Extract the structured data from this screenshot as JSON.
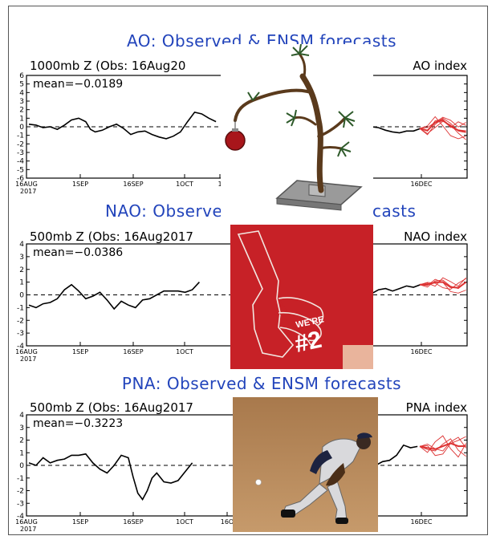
{
  "colors": {
    "title": "#2244bb",
    "observed": "#000000",
    "forecast": "#dd3333",
    "frame": "#000000",
    "finger_bg": "#c72127",
    "dirt": "#b58a5a"
  },
  "chart_data": [
    {
      "type": "line",
      "title": "AO: Observed & ENSM forecasts",
      "subtitle_left": "1000mb Z (Obs: 16Aug20",
      "subtitle_right": "AO index",
      "mean_label": "mean=−0.0189",
      "ylim": [
        -6,
        6
      ],
      "yticks": [
        "6",
        "5",
        "4",
        "3",
        "2",
        "1",
        "0",
        "-1",
        "-2",
        "-3",
        "-4",
        "-5",
        "-6"
      ],
      "xtick_labels": [
        "16AUG",
        "1SEP",
        "16SEP",
        "1OCT",
        "1",
        "",
        "16DEC",
        "16DEC"
      ],
      "year_label": "2017",
      "grid": false,
      "zero_line": "dashed",
      "observed_left": [
        [
          0,
          0.3
        ],
        [
          3,
          0.2
        ],
        [
          6,
          -0.1
        ],
        [
          9,
          0.0
        ],
        [
          12,
          -0.3
        ],
        [
          15,
          0.2
        ],
        [
          18,
          0.8
        ],
        [
          21,
          1.0
        ],
        [
          24,
          0.6
        ],
        [
          26,
          -0.3
        ],
        [
          28,
          -0.6
        ],
        [
          31,
          -0.4
        ],
        [
          34,
          0.0
        ],
        [
          37,
          0.3
        ],
        [
          40,
          -0.2
        ],
        [
          43,
          -0.9
        ],
        [
          46,
          -0.6
        ],
        [
          49,
          -0.5
        ],
        [
          52,
          -0.9
        ],
        [
          55,
          -1.2
        ],
        [
          58,
          -1.4
        ],
        [
          61,
          -1.1
        ],
        [
          64,
          -0.6
        ],
        [
          67,
          0.6
        ],
        [
          70,
          1.7
        ],
        [
          73,
          1.5
        ],
        [
          76,
          1.0
        ],
        [
          79,
          0.6
        ]
      ],
      "observed_right": [
        [
          0,
          0.0
        ],
        [
          3,
          -0.1
        ],
        [
          6,
          -0.4
        ],
        [
          9,
          -0.6
        ],
        [
          12,
          -0.7
        ],
        [
          15,
          -0.5
        ],
        [
          18,
          -0.5
        ],
        [
          21,
          -0.2
        ]
      ],
      "forecast_members": [
        [
          [
            0,
            0
          ],
          [
            3,
            -1.2
          ],
          [
            6,
            0.8
          ],
          [
            9,
            2.0
          ],
          [
            12,
            1.0
          ],
          [
            15,
            -0.5
          ],
          [
            18,
            -0.8
          ]
        ],
        [
          [
            0,
            0
          ],
          [
            3,
            -0.5
          ],
          [
            6,
            1.5
          ],
          [
            9,
            1.8
          ],
          [
            12,
            0.2
          ],
          [
            15,
            1.3
          ],
          [
            18,
            0.6
          ]
        ],
        [
          [
            0,
            0
          ],
          [
            3,
            0.5
          ],
          [
            6,
            2.3
          ],
          [
            9,
            0.5
          ],
          [
            12,
            -1.4
          ],
          [
            15,
            -2.0
          ],
          [
            18,
            -1.5
          ]
        ],
        [
          [
            0,
            0
          ],
          [
            3,
            -1.0
          ],
          [
            6,
            0.2
          ],
          [
            9,
            1.4
          ],
          [
            12,
            0.7
          ],
          [
            15,
            -0.9
          ],
          [
            18,
            -2.2
          ]
        ],
        [
          [
            0,
            0
          ],
          [
            3,
            0.2
          ],
          [
            6,
            1.2
          ],
          [
            9,
            2.2
          ],
          [
            12,
            1.6
          ],
          [
            15,
            0.3
          ],
          [
            18,
            1.2
          ]
        ]
      ]
    },
    {
      "type": "line",
      "title": "NAO: Observe",
      "title_right": "casts",
      "subtitle_left": "500mb Z (Obs: 16Aug2017",
      "subtitle_right": "NAO index",
      "mean_label": "mean=−0.0386",
      "ylim": [
        -4,
        4
      ],
      "yticks": [
        "4",
        "3",
        "2",
        "1",
        "0",
        "-1",
        "-2",
        "-3",
        "-4"
      ],
      "xtick_labels": [
        "16AUG",
        "1SEP",
        "16SEP",
        "1OCT",
        "1",
        "DEC",
        "16DEC"
      ],
      "year_label": "2017",
      "grid": false,
      "zero_line": "dashed",
      "observed_left": [
        [
          0,
          -0.8
        ],
        [
          3,
          -1.0
        ],
        [
          6,
          -0.7
        ],
        [
          9,
          -0.6
        ],
        [
          12,
          -0.3
        ],
        [
          15,
          0.4
        ],
        [
          18,
          0.8
        ],
        [
          21,
          0.3
        ],
        [
          24,
          -0.3
        ],
        [
          27,
          -0.1
        ],
        [
          30,
          0.2
        ],
        [
          33,
          -0.4
        ],
        [
          36,
          -1.1
        ],
        [
          39,
          -0.5
        ],
        [
          42,
          -0.8
        ],
        [
          45,
          -1.0
        ],
        [
          48,
          -0.4
        ],
        [
          51,
          -0.3
        ],
        [
          54,
          0.0
        ],
        [
          57,
          0.3
        ],
        [
          60,
          0.3
        ],
        [
          63,
          0.3
        ],
        [
          66,
          0.2
        ],
        [
          69,
          0.4
        ],
        [
          72,
          1.0
        ]
      ],
      "observed_right": [
        [
          0,
          0.1
        ],
        [
          3,
          0.4
        ],
        [
          6,
          0.5
        ],
        [
          9,
          0.3
        ],
        [
          12,
          0.5
        ],
        [
          15,
          0.7
        ],
        [
          18,
          0.6
        ],
        [
          21,
          0.8
        ]
      ],
      "forecast_members": [
        [
          [
            0,
            0
          ],
          [
            3,
            -0.3
          ],
          [
            6,
            0.5
          ],
          [
            9,
            0.6
          ],
          [
            12,
            -0.2
          ],
          [
            15,
            -0.5
          ],
          [
            18,
            0.3
          ]
        ],
        [
          [
            0,
            0
          ],
          [
            3,
            0.3
          ],
          [
            6,
            0.2
          ],
          [
            9,
            -0.4
          ],
          [
            12,
            -0.6
          ],
          [
            15,
            0.2
          ],
          [
            18,
            0.8
          ]
        ],
        [
          [
            0,
            0
          ],
          [
            3,
            -0.1
          ],
          [
            6,
            0.7
          ],
          [
            9,
            0.3
          ],
          [
            12,
            -0.9
          ],
          [
            15,
            -1.1
          ],
          [
            18,
            -0.7
          ]
        ],
        [
          [
            0,
            0
          ],
          [
            3,
            0.2
          ],
          [
            6,
            -0.2
          ],
          [
            9,
            0.9
          ],
          [
            12,
            0.4
          ],
          [
            15,
            -0.2
          ],
          [
            18,
            0.9
          ]
        ]
      ]
    },
    {
      "type": "line",
      "title": "PNA: Observed & ENSM forecasts",
      "subtitle_left": "500mb Z (Obs: 16Aug2017",
      "subtitle_right": "PNA index",
      "mean_label": "mean=−0.3223",
      "ylim": [
        -4,
        4
      ],
      "yticks": [
        "4",
        "3",
        "2",
        "1",
        "0",
        "-1",
        "-2",
        "-3",
        "-4"
      ],
      "xtick_labels": [
        "16AUG",
        "1SEP",
        "16SEP",
        "1OCT",
        "16O",
        "DEC",
        "16DEC"
      ],
      "year_label": "2017",
      "grid": false,
      "zero_line": "dashed",
      "observed_left": [
        [
          0,
          0.2
        ],
        [
          3,
          0.0
        ],
        [
          6,
          0.6
        ],
        [
          9,
          0.2
        ],
        [
          12,
          0.4
        ],
        [
          15,
          0.5
        ],
        [
          18,
          0.8
        ],
        [
          21,
          0.8
        ],
        [
          24,
          0.9
        ],
        [
          27,
          0.2
        ],
        [
          30,
          -0.3
        ],
        [
          33,
          -0.6
        ],
        [
          36,
          0.0
        ],
        [
          39,
          0.8
        ],
        [
          42,
          0.6
        ],
        [
          44,
          -0.9
        ],
        [
          46,
          -2.2
        ],
        [
          48,
          -2.7
        ],
        [
          50,
          -2.0
        ],
        [
          52,
          -1.0
        ],
        [
          54,
          -0.6
        ],
        [
          57,
          -1.3
        ],
        [
          60,
          -1.4
        ],
        [
          63,
          -1.2
        ],
        [
          66,
          -0.5
        ],
        [
          69,
          0.2
        ]
      ],
      "observed_right": [
        [
          0,
          0.0
        ],
        [
          3,
          0.3
        ],
        [
          6,
          0.4
        ],
        [
          9,
          0.8
        ],
        [
          12,
          1.6
        ],
        [
          15,
          1.4
        ],
        [
          18,
          1.5
        ]
      ],
      "forecast_members": [
        [
          [
            0,
            0
          ],
          [
            3,
            -0.4
          ],
          [
            6,
            -0.6
          ],
          [
            9,
            0.3
          ],
          [
            12,
            1.0
          ],
          [
            15,
            -0.5
          ],
          [
            18,
            -1.3
          ]
        ],
        [
          [
            0,
            0
          ],
          [
            3,
            0.3
          ],
          [
            6,
            -0.3
          ],
          [
            9,
            -0.6
          ],
          [
            12,
            0.6
          ],
          [
            15,
            1.2
          ],
          [
            18,
            -0.2
          ]
        ],
        [
          [
            0,
            0
          ],
          [
            3,
            -0.8
          ],
          [
            6,
            0.6
          ],
          [
            9,
            1.4
          ],
          [
            12,
            -0.3
          ],
          [
            15,
            -1.4
          ],
          [
            18,
            0.4
          ]
        ],
        [
          [
            0,
            0
          ],
          [
            3,
            0.1
          ],
          [
            6,
            -1.2
          ],
          [
            9,
            -1.0
          ],
          [
            12,
            0.4
          ],
          [
            15,
            0.8
          ],
          [
            18,
            1.3
          ]
        ]
      ]
    }
  ],
  "overlays": {
    "finger_text_top": "WE'RE",
    "finger_text_big": "#2"
  }
}
